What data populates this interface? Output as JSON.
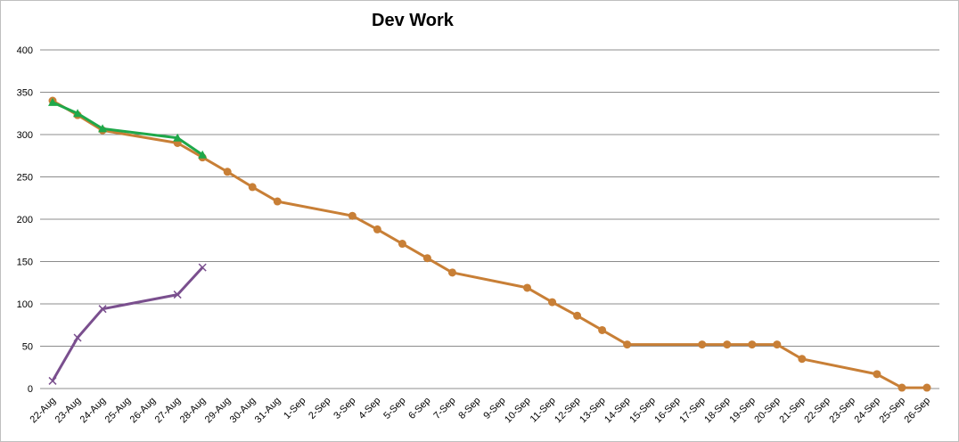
{
  "chart_data": {
    "type": "line",
    "title": "Dev Work",
    "xlabel": "",
    "ylabel": "",
    "ylim": [
      0,
      400
    ],
    "yticks": [
      "0",
      "50",
      "100",
      "150",
      "200",
      "250",
      "300",
      "350",
      "400"
    ],
    "categories": [
      "22-Aug",
      "23-Aug",
      "24-Aug",
      "25-Aug",
      "26-Aug",
      "27-Aug",
      "28-Aug",
      "29-Aug",
      "30-Aug",
      "31-Aug",
      "1-Sep",
      "2-Sep",
      "3-Sep",
      "4-Sep",
      "5-Sep",
      "6-Sep",
      "7-Sep",
      "8-Sep",
      "9-Sep",
      "10-Sep",
      "11-Sep",
      "12-Sep",
      "13-Sep",
      "14-Sep",
      "15-Sep",
      "16-Sep",
      "17-Sep",
      "18-Sep",
      "19-Sep",
      "20-Sep",
      "21-Sep",
      "22-Sep",
      "23-Sep",
      "24-Sep",
      "25-Sep",
      "26-Sep"
    ],
    "grid": true,
    "legend": "none",
    "series": [
      {
        "color": "#c87f36",
        "marker": "circle",
        "values": [
          340,
          323,
          305,
          null,
          null,
          290,
          273,
          256,
          238,
          221,
          null,
          null,
          204,
          188,
          171,
          154,
          137,
          null,
          null,
          119,
          102,
          86,
          69,
          52,
          null,
          null,
          52,
          52,
          52,
          52,
          35,
          null,
          null,
          17,
          1,
          1
        ]
      },
      {
        "color": "#1fa84a",
        "marker": "triangle",
        "values": [
          338,
          325,
          307,
          null,
          null,
          296,
          276,
          null,
          null,
          null,
          null,
          null,
          null,
          null,
          null,
          null,
          null,
          null,
          null,
          null,
          null,
          null,
          null,
          null,
          null,
          null,
          null,
          null,
          null,
          null,
          null,
          null,
          null,
          null,
          null,
          null
        ]
      },
      {
        "color": "#7a4f8e",
        "marker": "x",
        "values": [
          9,
          60,
          94,
          null,
          null,
          111,
          143,
          null,
          null,
          null,
          null,
          null,
          null,
          null,
          null,
          null,
          null,
          null,
          null,
          null,
          null,
          null,
          null,
          null,
          null,
          null,
          null,
          null,
          null,
          null,
          null,
          null,
          null,
          null,
          null,
          null
        ]
      }
    ]
  }
}
